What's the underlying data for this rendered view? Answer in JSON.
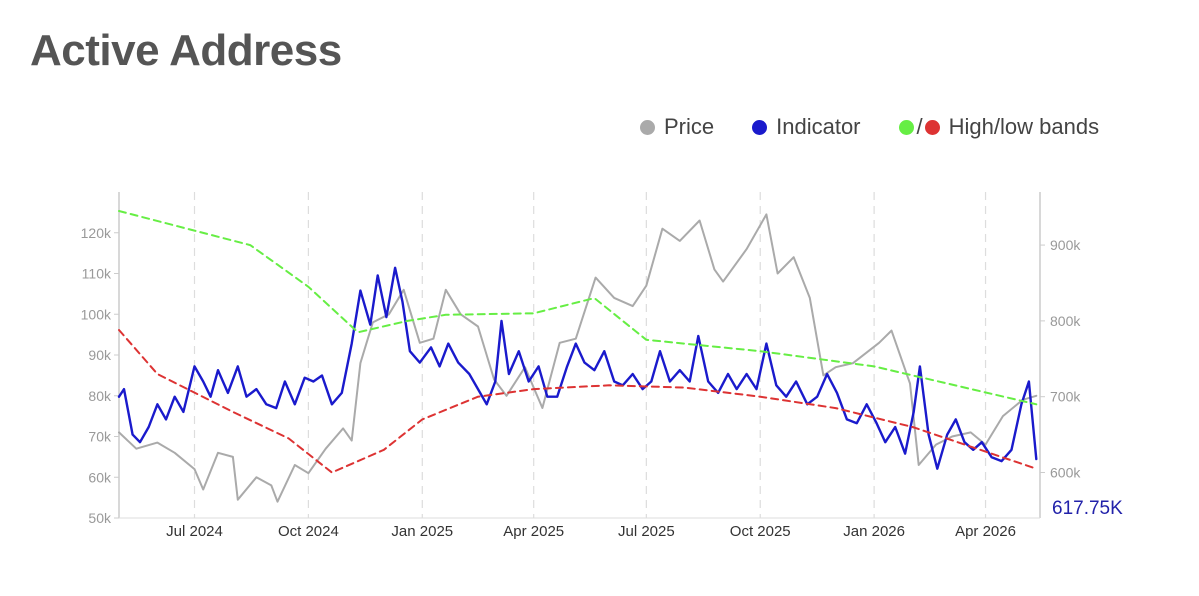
{
  "title": "Active Address",
  "legend": {
    "price_label": "Price",
    "indicator_label": "Indicator",
    "bands_sep": "/",
    "bands_label": "High/low bands"
  },
  "colors": {
    "price": "#aaaaaa",
    "indicator": "#1a1acc",
    "high_band": "#66ee44",
    "low_band": "#dd3333",
    "grid": "#dddddd",
    "axis_text": "#999999"
  },
  "chart_data": {
    "type": "line",
    "x_range": [
      "2024-05-01",
      "2026-05-15"
    ],
    "x_ticks": [
      {
        "date": "2024-07-01",
        "label": "Jul 2024"
      },
      {
        "date": "2024-10-01",
        "label": "Oct 2024"
      },
      {
        "date": "2025-01-01",
        "label": "Jan 2025"
      },
      {
        "date": "2025-04-01",
        "label": "Apr 2025"
      },
      {
        "date": "2025-07-01",
        "label": "Jul 2025"
      },
      {
        "date": "2025-10-01",
        "label": "Oct 2025"
      },
      {
        "date": "2026-01-01",
        "label": "Jan 2026"
      },
      {
        "date": "2026-04-01",
        "label": "Apr 2026"
      }
    ],
    "y_left": {
      "range": [
        50000,
        130000
      ],
      "ticks": [
        50000,
        60000,
        70000,
        80000,
        90000,
        100000,
        110000,
        120000
      ],
      "tick_labels": [
        "50k",
        "60k",
        "70k",
        "80k",
        "90k",
        "100k",
        "110k",
        "120k"
      ]
    },
    "y_right": {
      "range": [
        540000,
        970000
      ],
      "ticks": [
        600000,
        700000,
        800000,
        900000
      ],
      "tick_labels": [
        "600k",
        "700k",
        "800k",
        "900k"
      ]
    },
    "last_value_label": "617.75K",
    "grid": "vertical dashed",
    "legend_position": "top-right",
    "series": [
      {
        "name": "Price",
        "axis": "left",
        "style": "solid",
        "points": [
          [
            "2024-05-01",
            71000
          ],
          [
            "2024-05-15",
            67000
          ],
          [
            "2024-06-01",
            68500
          ],
          [
            "2024-06-15",
            66000
          ],
          [
            "2024-07-01",
            62000
          ],
          [
            "2024-07-08",
            57000
          ],
          [
            "2024-07-20",
            66000
          ],
          [
            "2024-08-01",
            65000
          ],
          [
            "2024-08-05",
            54500
          ],
          [
            "2024-08-20",
            60000
          ],
          [
            "2024-09-01",
            58000
          ],
          [
            "2024-09-06",
            54000
          ],
          [
            "2024-09-20",
            63000
          ],
          [
            "2024-10-01",
            61000
          ],
          [
            "2024-10-15",
            67000
          ],
          [
            "2024-10-29",
            72000
          ],
          [
            "2024-11-05",
            69000
          ],
          [
            "2024-11-12",
            88000
          ],
          [
            "2024-11-22",
            98000
          ],
          [
            "2024-12-05",
            100000
          ],
          [
            "2024-12-17",
            106000
          ],
          [
            "2024-12-30",
            93000
          ],
          [
            "2025-01-10",
            94000
          ],
          [
            "2025-01-20",
            106000
          ],
          [
            "2025-02-01",
            100000
          ],
          [
            "2025-02-15",
            97000
          ],
          [
            "2025-02-28",
            84000
          ],
          [
            "2025-03-10",
            80000
          ],
          [
            "2025-03-25",
            87000
          ],
          [
            "2025-04-08",
            77000
          ],
          [
            "2025-04-22",
            93000
          ],
          [
            "2025-05-05",
            94000
          ],
          [
            "2025-05-21",
            109000
          ],
          [
            "2025-06-05",
            104000
          ],
          [
            "2025-06-20",
            102000
          ],
          [
            "2025-07-01",
            107000
          ],
          [
            "2025-07-14",
            121000
          ],
          [
            "2025-07-28",
            118000
          ],
          [
            "2025-08-13",
            123000
          ],
          [
            "2025-08-25",
            111000
          ],
          [
            "2025-09-01",
            108000
          ],
          [
            "2025-09-20",
            116000
          ],
          [
            "2025-10-06",
            124500
          ],
          [
            "2025-10-15",
            110000
          ],
          [
            "2025-10-28",
            114000
          ],
          [
            "2025-11-10",
            104000
          ],
          [
            "2025-11-21",
            85000
          ],
          [
            "2025-12-01",
            87000
          ],
          [
            "2025-12-15",
            88000
          ],
          [
            "2026-01-05",
            93000
          ],
          [
            "2026-01-15",
            96000
          ],
          [
            "2026-01-30",
            83000
          ],
          [
            "2026-02-06",
            63000
          ],
          [
            "2026-02-20",
            68000
          ],
          [
            "2026-03-05",
            70000
          ],
          [
            "2026-03-20",
            71000
          ],
          [
            "2026-04-01",
            68000
          ],
          [
            "2026-04-15",
            75000
          ],
          [
            "2026-05-01",
            79000
          ],
          [
            "2026-05-12",
            80000
          ]
        ]
      },
      {
        "name": "Indicator",
        "axis": "right",
        "style": "solid",
        "points": [
          [
            "2024-05-01",
            700000
          ],
          [
            "2024-05-05",
            710000
          ],
          [
            "2024-05-12",
            650000
          ],
          [
            "2024-05-18",
            640000
          ],
          [
            "2024-05-25",
            660000
          ],
          [
            "2024-06-01",
            690000
          ],
          [
            "2024-06-08",
            670000
          ],
          [
            "2024-06-15",
            700000
          ],
          [
            "2024-06-22",
            680000
          ],
          [
            "2024-07-01",
            740000
          ],
          [
            "2024-07-08",
            720000
          ],
          [
            "2024-07-14",
            700000
          ],
          [
            "2024-07-20",
            735000
          ],
          [
            "2024-07-28",
            705000
          ],
          [
            "2024-08-05",
            740000
          ],
          [
            "2024-08-12",
            700000
          ],
          [
            "2024-08-20",
            710000
          ],
          [
            "2024-08-28",
            690000
          ],
          [
            "2024-09-05",
            685000
          ],
          [
            "2024-09-12",
            720000
          ],
          [
            "2024-09-20",
            690000
          ],
          [
            "2024-09-28",
            725000
          ],
          [
            "2024-10-05",
            720000
          ],
          [
            "2024-10-12",
            728000
          ],
          [
            "2024-10-20",
            690000
          ],
          [
            "2024-10-28",
            705000
          ],
          [
            "2024-11-05",
            770000
          ],
          [
            "2024-11-12",
            840000
          ],
          [
            "2024-11-20",
            795000
          ],
          [
            "2024-11-26",
            860000
          ],
          [
            "2024-12-03",
            805000
          ],
          [
            "2024-12-10",
            870000
          ],
          [
            "2024-12-16",
            825000
          ],
          [
            "2024-12-22",
            760000
          ],
          [
            "2024-12-30",
            745000
          ],
          [
            "2025-01-08",
            765000
          ],
          [
            "2025-01-15",
            740000
          ],
          [
            "2025-01-22",
            770000
          ],
          [
            "2025-01-30",
            745000
          ],
          [
            "2025-02-08",
            730000
          ],
          [
            "2025-02-15",
            710000
          ],
          [
            "2025-02-22",
            690000
          ],
          [
            "2025-03-01",
            720000
          ],
          [
            "2025-03-06",
            800000
          ],
          [
            "2025-03-12",
            730000
          ],
          [
            "2025-03-20",
            760000
          ],
          [
            "2025-03-28",
            720000
          ],
          [
            "2025-04-05",
            740000
          ],
          [
            "2025-04-12",
            700000
          ],
          [
            "2025-04-20",
            700000
          ],
          [
            "2025-04-28",
            740000
          ],
          [
            "2025-05-05",
            770000
          ],
          [
            "2025-05-12",
            745000
          ],
          [
            "2025-05-20",
            735000
          ],
          [
            "2025-05-28",
            760000
          ],
          [
            "2025-06-05",
            720000
          ],
          [
            "2025-06-12",
            715000
          ],
          [
            "2025-06-20",
            730000
          ],
          [
            "2025-06-28",
            710000
          ],
          [
            "2025-07-05",
            720000
          ],
          [
            "2025-07-12",
            760000
          ],
          [
            "2025-07-20",
            720000
          ],
          [
            "2025-07-28",
            735000
          ],
          [
            "2025-08-05",
            720000
          ],
          [
            "2025-08-12",
            780000
          ],
          [
            "2025-08-20",
            720000
          ],
          [
            "2025-08-28",
            705000
          ],
          [
            "2025-09-05",
            730000
          ],
          [
            "2025-09-12",
            710000
          ],
          [
            "2025-09-20",
            730000
          ],
          [
            "2025-09-28",
            710000
          ],
          [
            "2025-10-06",
            770000
          ],
          [
            "2025-10-14",
            715000
          ],
          [
            "2025-10-22",
            700000
          ],
          [
            "2025-10-30",
            720000
          ],
          [
            "2025-11-08",
            690000
          ],
          [
            "2025-11-16",
            700000
          ],
          [
            "2025-11-24",
            730000
          ],
          [
            "2025-12-02",
            705000
          ],
          [
            "2025-12-10",
            670000
          ],
          [
            "2025-12-18",
            665000
          ],
          [
            "2025-12-26",
            690000
          ],
          [
            "2026-01-03",
            665000
          ],
          [
            "2026-01-10",
            640000
          ],
          [
            "2026-01-18",
            660000
          ],
          [
            "2026-01-26",
            625000
          ],
          [
            "2026-02-02",
            680000
          ],
          [
            "2026-02-07",
            740000
          ],
          [
            "2026-02-14",
            650000
          ],
          [
            "2026-02-21",
            605000
          ],
          [
            "2026-03-01",
            650000
          ],
          [
            "2026-03-08",
            670000
          ],
          [
            "2026-03-15",
            640000
          ],
          [
            "2026-03-22",
            630000
          ],
          [
            "2026-03-29",
            640000
          ],
          [
            "2026-04-06",
            620000
          ],
          [
            "2026-04-14",
            615000
          ],
          [
            "2026-04-22",
            630000
          ],
          [
            "2026-04-30",
            690000
          ],
          [
            "2026-05-06",
            720000
          ],
          [
            "2026-05-12",
            617750
          ]
        ]
      },
      {
        "name": "High band",
        "axis": "right",
        "style": "dashed",
        "points": [
          [
            "2024-05-01",
            945000
          ],
          [
            "2024-08-15",
            900000
          ],
          [
            "2024-10-01",
            845000
          ],
          [
            "2024-11-10",
            785000
          ],
          [
            "2024-12-20",
            800000
          ],
          [
            "2025-01-20",
            808000
          ],
          [
            "2025-04-01",
            810000
          ],
          [
            "2025-05-20",
            830000
          ],
          [
            "2025-07-01",
            775000
          ],
          [
            "2025-10-01",
            760000
          ],
          [
            "2026-01-01",
            740000
          ],
          [
            "2026-05-12",
            690000
          ]
        ]
      },
      {
        "name": "Low band",
        "axis": "right",
        "style": "dashed",
        "points": [
          [
            "2024-05-01",
            788000
          ],
          [
            "2024-06-01",
            730000
          ],
          [
            "2024-08-01",
            680000
          ],
          [
            "2024-09-15",
            645000
          ],
          [
            "2024-10-20",
            600000
          ],
          [
            "2024-12-01",
            630000
          ],
          [
            "2025-01-01",
            670000
          ],
          [
            "2025-02-15",
            700000
          ],
          [
            "2025-04-01",
            710000
          ],
          [
            "2025-06-01",
            715000
          ],
          [
            "2025-08-01",
            712000
          ],
          [
            "2025-10-01",
            700000
          ],
          [
            "2025-12-01",
            685000
          ],
          [
            "2026-02-01",
            660000
          ],
          [
            "2026-05-12",
            605000
          ]
        ]
      }
    ]
  }
}
